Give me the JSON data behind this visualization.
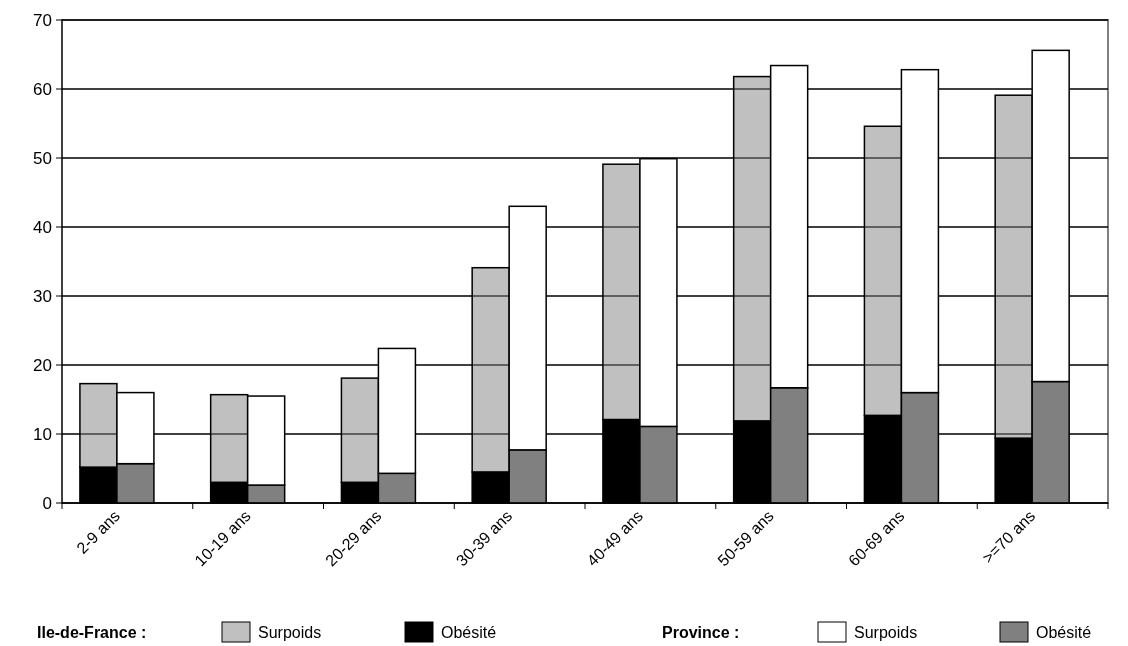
{
  "chart_data": [
    {
      "type": "bar",
      "stacked": true,
      "legend_title": "Ile-de-France :",
      "categories": [
        "2-9 ans",
        "10-19 ans",
        "20-29 ans",
        "30-39 ans",
        "40-49 ans",
        "50-59 ans",
        "60-69 ans",
        ">=70 ans"
      ],
      "series": [
        {
          "name": "Obésité",
          "color": "#000000",
          "values": [
            5.2,
            3.0,
            3.0,
            4.5,
            12.1,
            11.9,
            12.7,
            9.4
          ]
        },
        {
          "name": "Surpoids",
          "color": "#c0c0c0",
          "values": [
            12.1,
            12.7,
            15.1,
            29.6,
            37.0,
            49.9,
            41.9,
            49.7
          ]
        }
      ],
      "ylim": [
        0,
        70
      ],
      "yticks": [
        0,
        10,
        20,
        30,
        40,
        50,
        60,
        70
      ],
      "grid": "y",
      "legend": "bottom"
    },
    {
      "type": "bar",
      "stacked": true,
      "legend_title": "Province :",
      "categories": [
        null,
        null,
        null,
        null,
        null,
        null,
        null,
        null
      ],
      "series": [
        {
          "name": "Obésité",
          "color": "#808080",
          "values": [
            5.7,
            2.6,
            4.3,
            7.7,
            11.1,
            16.7,
            16.0,
            17.6
          ]
        },
        {
          "name": "Surpoids",
          "color": "#ffffff",
          "values": [
            10.3,
            12.9,
            18.1,
            35.3,
            38.8,
            46.7,
            46.8,
            48.0
          ]
        }
      ],
      "ylim": [
        0,
        70
      ],
      "yticks": [
        0,
        10,
        20,
        30,
        40,
        50,
        60,
        70
      ],
      "grid": "y",
      "legend": "bottom",
      "tick_labels": false
    }
  ]
}
